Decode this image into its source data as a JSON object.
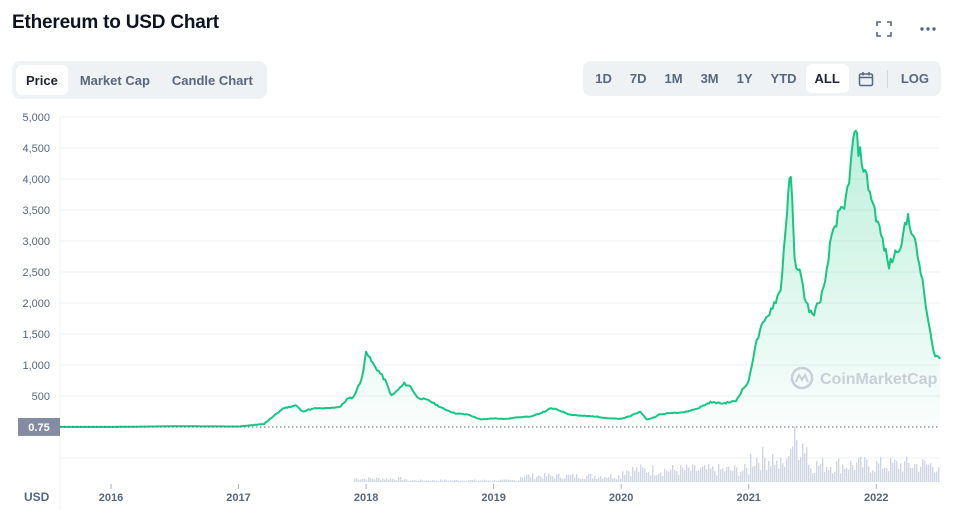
{
  "header": {
    "title": "Ethereum to USD Chart",
    "icons": [
      "fullscreen-icon",
      "more-icon"
    ]
  },
  "tabs": [
    {
      "label": "Price",
      "active": true
    },
    {
      "label": "Market Cap",
      "active": false
    },
    {
      "label": "Candle Chart",
      "active": false
    }
  ],
  "ranges": [
    {
      "label": "1D",
      "active": false
    },
    {
      "label": "7D",
      "active": false
    },
    {
      "label": "1M",
      "active": false
    },
    {
      "label": "3M",
      "active": false
    },
    {
      "label": "1Y",
      "active": false
    },
    {
      "label": "YTD",
      "active": false
    },
    {
      "label": "ALL",
      "active": true
    }
  ],
  "calendar_icon": "calendar-icon",
  "log_label": "LOG",
  "watermark": "CoinMarketCap",
  "colors": {
    "line": "#16c784",
    "fill_top": "#16c784",
    "volume": "#cfd6e4",
    "badge_bg": "#858ca2",
    "grid": "#eff2f5",
    "axis_text": "#58667e"
  },
  "chart_data": {
    "type": "area",
    "title": "Ethereum to USD Chart",
    "currency_label": "USD",
    "ylim": [
      0,
      5000
    ],
    "yticks": [
      "500",
      "1,000",
      "1,500",
      "2,000",
      "2,500",
      "3,000",
      "3,500",
      "4,000",
      "4,500",
      "5,000"
    ],
    "ytick_values": [
      500,
      1000,
      1500,
      2000,
      2500,
      3000,
      3500,
      4000,
      4500,
      5000
    ],
    "xticks": [
      "2016",
      "2017",
      "2018",
      "2019",
      "2020",
      "2021",
      "2022"
    ],
    "xtick_values": [
      2016,
      2017,
      2018,
      2019,
      2020,
      2021,
      2022
    ],
    "xlim": [
      2015.6,
      2022.5
    ],
    "reference_line": {
      "value": 0.75,
      "label": "0.75"
    },
    "grid": true,
    "series": [
      {
        "x": [
          2015.6,
          2016.0,
          2016.5,
          2017.0,
          2017.2,
          2017.35,
          2017.45,
          2017.5,
          2017.55,
          2017.6,
          2017.7,
          2017.8,
          2017.85,
          2017.9,
          2017.95,
          2017.98,
          2018.0,
          2018.03,
          2018.06,
          2018.1,
          2018.15,
          2018.2,
          2018.25,
          2018.3,
          2018.35,
          2018.4,
          2018.45,
          2018.5,
          2018.6,
          2018.7,
          2018.8,
          2018.9,
          2018.95,
          2019.0,
          2019.1,
          2019.2,
          2019.3,
          2019.4,
          2019.45,
          2019.5,
          2019.6,
          2019.7,
          2019.8,
          2019.9,
          2020.0,
          2020.1,
          2020.15,
          2020.2,
          2020.25,
          2020.3,
          2020.4,
          2020.5,
          2020.6,
          2020.7,
          2020.8,
          2020.9,
          2020.95,
          2021.0,
          2021.05,
          2021.1,
          2021.15,
          2021.2,
          2021.25,
          2021.3,
          2021.33,
          2021.36,
          2021.4,
          2021.45,
          2021.5,
          2021.55,
          2021.6,
          2021.65,
          2021.7,
          2021.75,
          2021.8,
          2021.83,
          2021.86,
          2021.9,
          2021.95,
          2022.0,
          2022.05,
          2022.1,
          2022.15,
          2022.2,
          2022.25,
          2022.3,
          2022.35,
          2022.4,
          2022.45,
          2022.5
        ],
        "y": [
          1,
          1,
          12,
          8,
          50,
          300,
          350,
          250,
          280,
          300,
          300,
          330,
          450,
          480,
          700,
          900,
          1250,
          1100,
          1000,
          900,
          750,
          500,
          600,
          700,
          650,
          480,
          450,
          420,
          300,
          220,
          200,
          120,
          130,
          140,
          130,
          160,
          170,
          250,
          300,
          280,
          200,
          180,
          170,
          140,
          130,
          200,
          250,
          120,
          150,
          200,
          230,
          240,
          300,
          400,
          380,
          420,
          600,
          730,
          1300,
          1600,
          1800,
          2000,
          2200,
          3500,
          4100,
          2700,
          2500,
          2000,
          1800,
          2000,
          2300,
          3100,
          3400,
          3500,
          4200,
          4800,
          4500,
          4200,
          3800,
          3400,
          3000,
          2600,
          2800,
          3000,
          3400,
          3000,
          2500,
          1800,
          1200,
          1100
        ]
      }
    ],
    "volume_note": "volume histogram shown beneath the price area"
  }
}
